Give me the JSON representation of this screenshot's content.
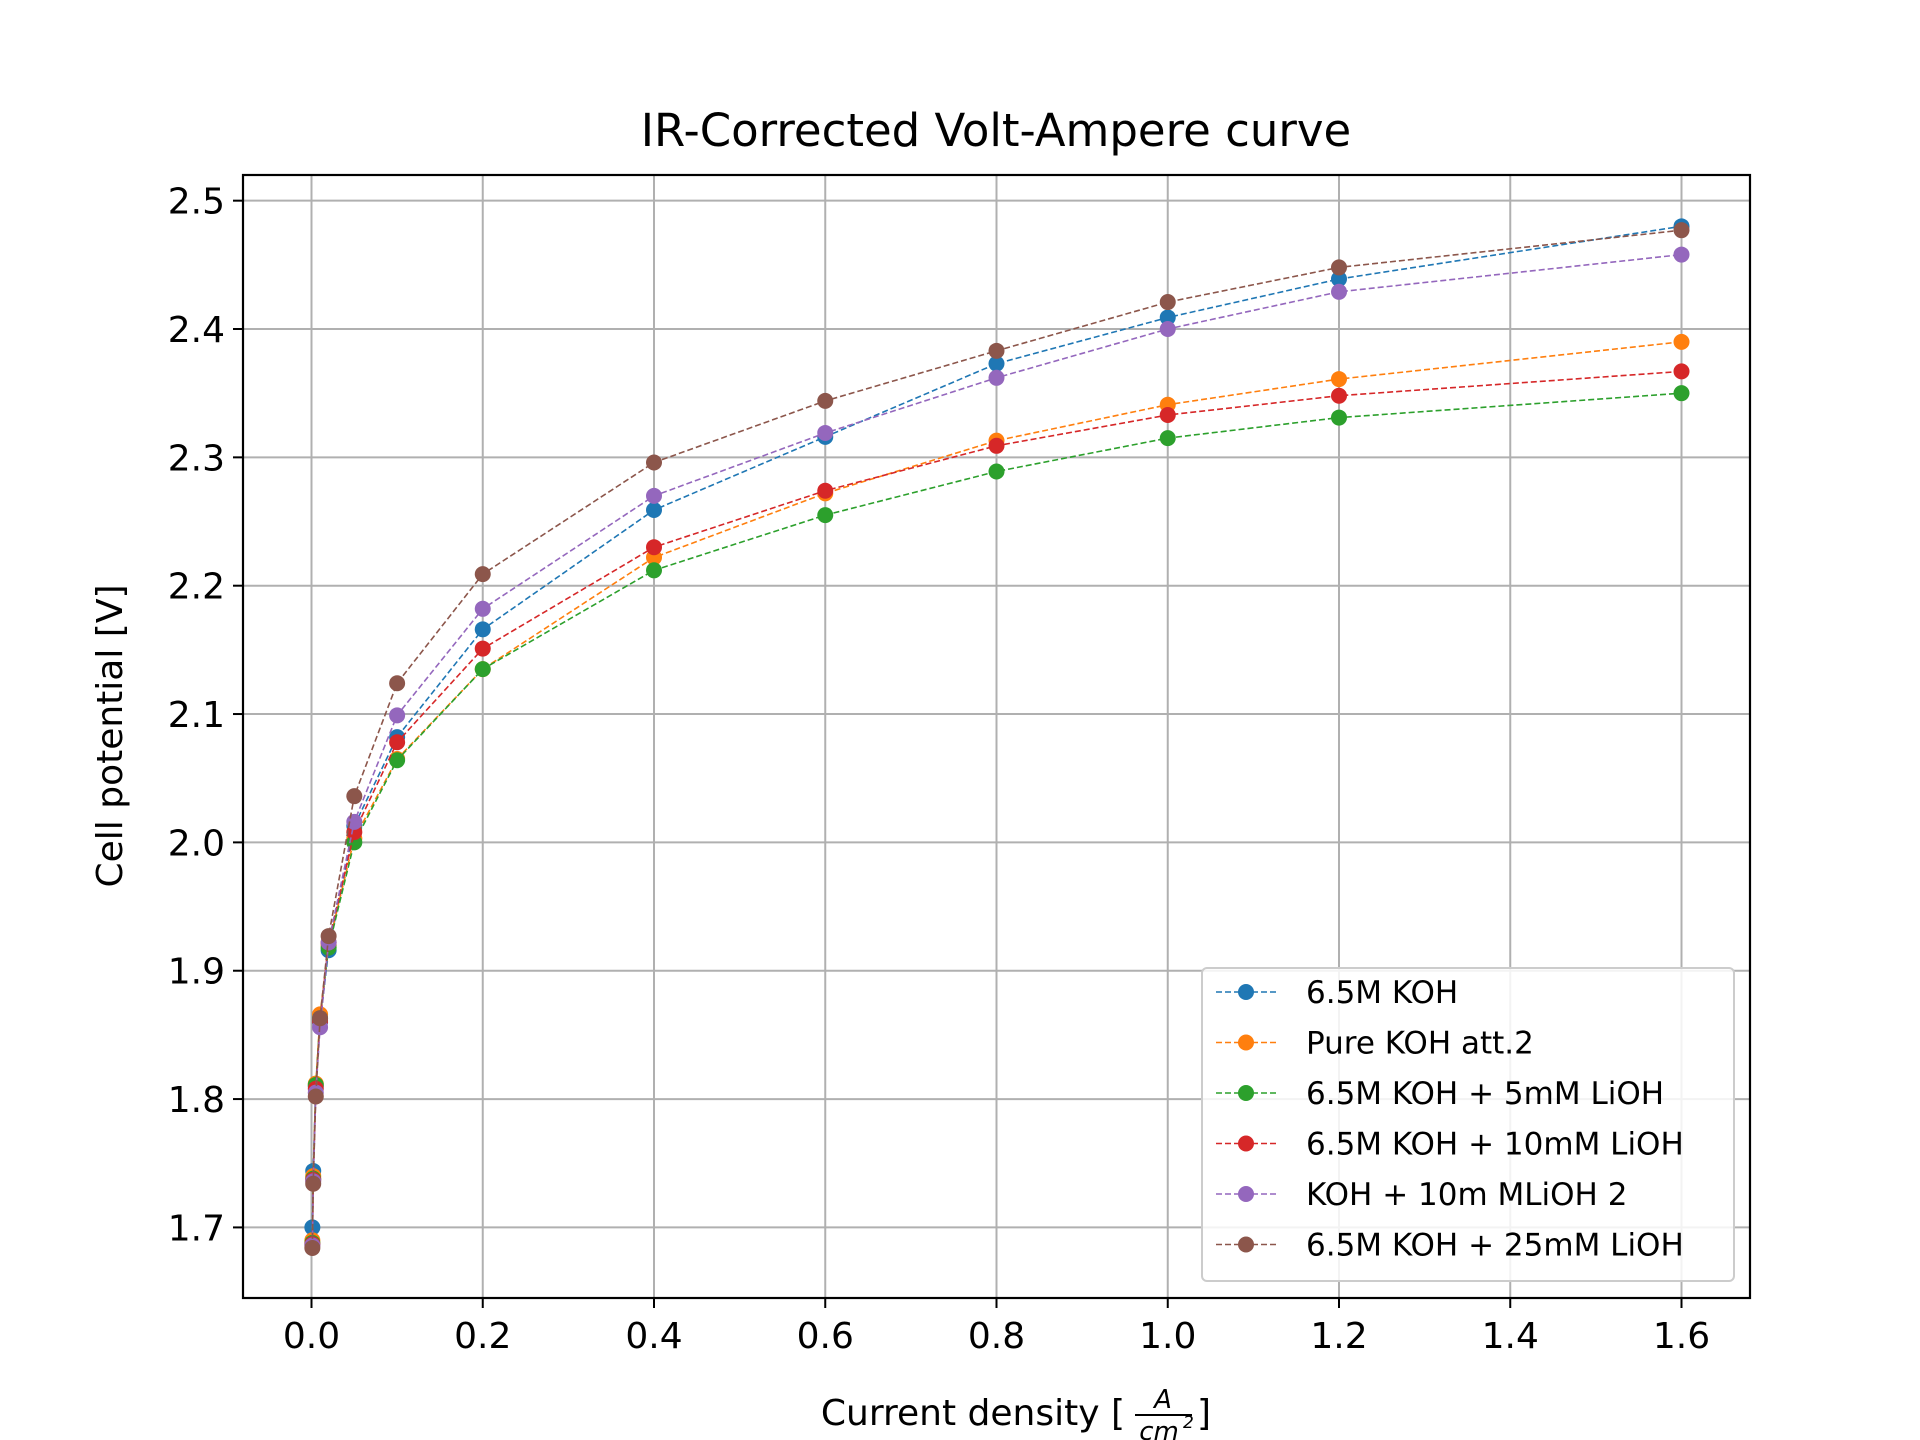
{
  "chart_data": {
    "type": "line",
    "title": "IR-Corrected Volt-Ampere curve",
    "xlabel_prefix": "Current density [",
    "xlabel_unit_num": "A",
    "xlabel_unit_den": "cm",
    "xlabel_unit_den_exp": "2",
    "xlabel_suffix": "]",
    "ylabel": "Cell potential [V]",
    "xlim": [
      -0.08,
      1.68
    ],
    "ylim": [
      1.645,
      2.52
    ],
    "xticks": [
      0.0,
      0.2,
      0.4,
      0.6,
      0.8,
      1.0,
      1.2,
      1.4,
      1.6
    ],
    "xtick_labels": [
      "0.0",
      "0.2",
      "0.4",
      "0.6",
      "0.8",
      "1.0",
      "1.2",
      "1.4",
      "1.6"
    ],
    "yticks": [
      1.7,
      1.8,
      1.9,
      2.0,
      2.1,
      2.2,
      2.3,
      2.4,
      2.5
    ],
    "ytick_labels": [
      "1.7",
      "1.8",
      "1.9",
      "2.0",
      "2.1",
      "2.2",
      "2.3",
      "2.4",
      "2.5"
    ],
    "grid": true,
    "legend_position": "lower right",
    "x": [
      0.001,
      0.002,
      0.005,
      0.01,
      0.02,
      0.05,
      0.1,
      0.2,
      0.4,
      0.6,
      0.8,
      1.0,
      1.2,
      1.6
    ],
    "series": [
      {
        "name": "6.5M KOH",
        "color": "#1f77b4",
        "values": [
          1.7,
          1.744,
          1.81,
          1.86,
          1.916,
          2.013,
          2.082,
          2.166,
          2.259,
          2.316,
          2.373,
          2.409,
          2.439,
          2.48
        ]
      },
      {
        "name": "Pure KOH att.2",
        "color": "#ff7f0e",
        "values": [
          1.69,
          1.74,
          1.812,
          1.866,
          1.92,
          2.003,
          2.065,
          2.135,
          2.222,
          2.272,
          2.313,
          2.341,
          2.361,
          2.39
        ]
      },
      {
        "name": "6.5M KOH + 5mM LiOH",
        "color": "#2ca02c",
        "values": [
          1.688,
          1.738,
          1.811,
          1.863,
          1.918,
          2.0,
          2.064,
          2.135,
          2.212,
          2.255,
          2.289,
          2.315,
          2.331,
          2.35
        ]
      },
      {
        "name": "6.5M KOH + 10mM LiOH",
        "color": "#d62728",
        "values": [
          1.687,
          1.737,
          1.808,
          1.861,
          1.922,
          2.008,
          2.078,
          2.151,
          2.23,
          2.274,
          2.309,
          2.333,
          2.348,
          2.367
        ]
      },
      {
        "name": "KOH + 10m MLiOH 2",
        "color": "#9467bd",
        "values": [
          1.686,
          1.736,
          1.805,
          1.856,
          1.922,
          2.016,
          2.099,
          2.182,
          2.27,
          2.319,
          2.362,
          2.4,
          2.429,
          2.458
        ]
      },
      {
        "name": "6.5M KOH + 25mM LiOH",
        "color": "#8c564b",
        "values": [
          1.684,
          1.734,
          1.802,
          1.863,
          1.927,
          2.036,
          2.124,
          2.209,
          2.296,
          2.344,
          2.383,
          2.421,
          2.448,
          2.477
        ]
      }
    ]
  }
}
